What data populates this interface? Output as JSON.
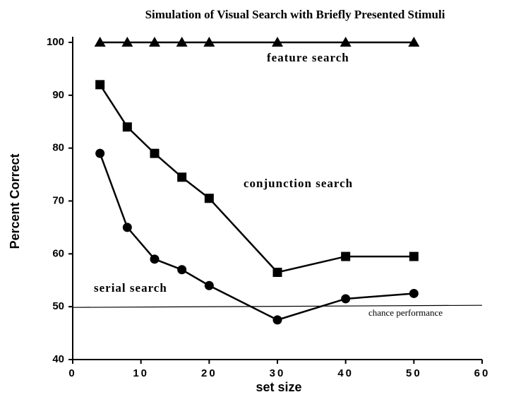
{
  "chart_data": {
    "type": "line",
    "title": "Simulation of Visual Search with Briefly Presented Stimuli",
    "xlabel": "set size",
    "ylabel": "Percent Correct",
    "x": [
      4,
      8,
      12,
      16,
      20,
      30,
      40,
      50
    ],
    "series": [
      {
        "name": "feature search",
        "color": "#000000",
        "marker": "triangle",
        "values": [
          100,
          100,
          100,
          100,
          100,
          100,
          100,
          100
        ]
      },
      {
        "name": "conjunction search",
        "color": "#000000",
        "marker": "square",
        "values": [
          92,
          84,
          79,
          74.5,
          70.5,
          56.5,
          59.5,
          59.5
        ]
      },
      {
        "name": "serial search",
        "color": "#000000",
        "marker": "circle",
        "values": [
          79,
          65,
          59,
          57,
          54,
          47.5,
          51.5,
          52.5
        ]
      }
    ],
    "reference_line": {
      "value": 50,
      "label": "chance performance"
    },
    "xlim": [
      0,
      60
    ],
    "ylim": [
      40,
      100
    ],
    "xticks": [
      0,
      10,
      20,
      30,
      40,
      50,
      60
    ],
    "yticks": [
      40,
      50,
      60,
      70,
      80,
      90,
      100
    ],
    "grid": false
  }
}
